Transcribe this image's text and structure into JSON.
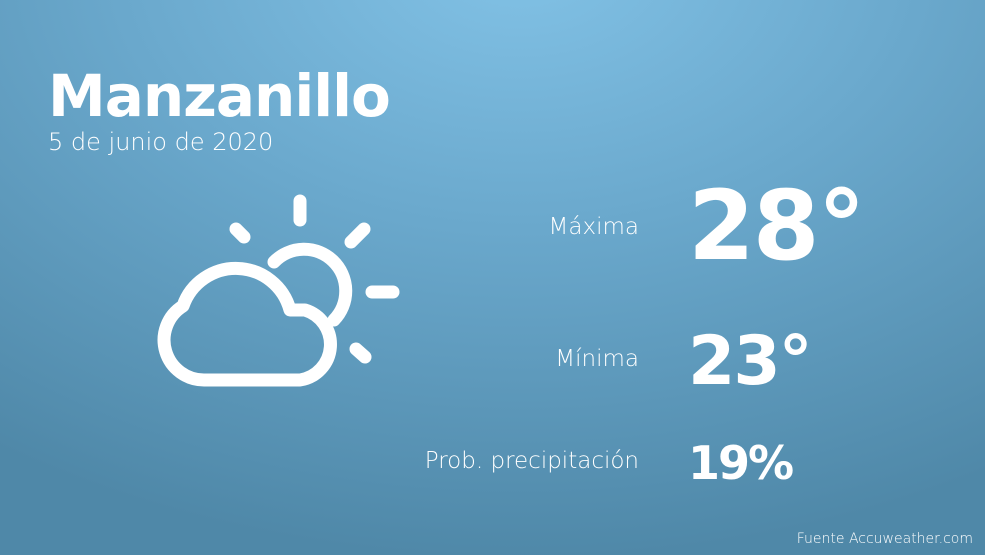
{
  "city": "Manzanillo",
  "date": "5 de junio de 2020",
  "icon": "partly-cloudy-icon",
  "stats": [
    {
      "label": "Máxima",
      "value": "28°"
    },
    {
      "label": "Mínima",
      "value": "23°"
    },
    {
      "label": "Prob. precipitación",
      "value": "19%"
    }
  ],
  "source": "Fuente Accuweather.com",
  "colors": {
    "bg_top": "#82c2e6",
    "bg_bottom": "#4f88a8",
    "text": "#ffffff"
  }
}
